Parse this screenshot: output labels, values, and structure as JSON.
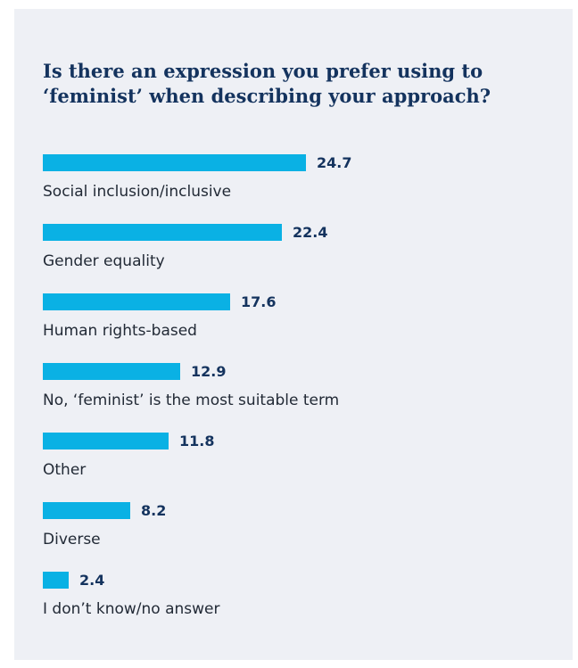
{
  "chart_data": {
    "type": "bar",
    "orientation": "horizontal",
    "title": "Is there an expression you prefer using to ‘feminist’ when describing your approach?",
    "categories": [
      "Social inclusion/inclusive",
      "Gender equality",
      "Human rights-based",
      "No, ‘feminist’ is the most suitable term",
      "Other",
      "Diverse",
      "I don’t know/no answer"
    ],
    "values": [
      24.7,
      22.4,
      17.6,
      12.9,
      11.8,
      8.2,
      2.4
    ],
    "value_labels": [
      "24.7",
      "22.4",
      "17.6",
      "12.9",
      "11.8",
      "8.2",
      "2.4"
    ],
    "xlim": [
      0,
      24.7
    ],
    "grid": false,
    "legend": "none",
    "colors": {
      "bar": "#0ab1e4",
      "value_text": "#14335e",
      "title": "#14335e",
      "background": "#eef0f5"
    }
  }
}
